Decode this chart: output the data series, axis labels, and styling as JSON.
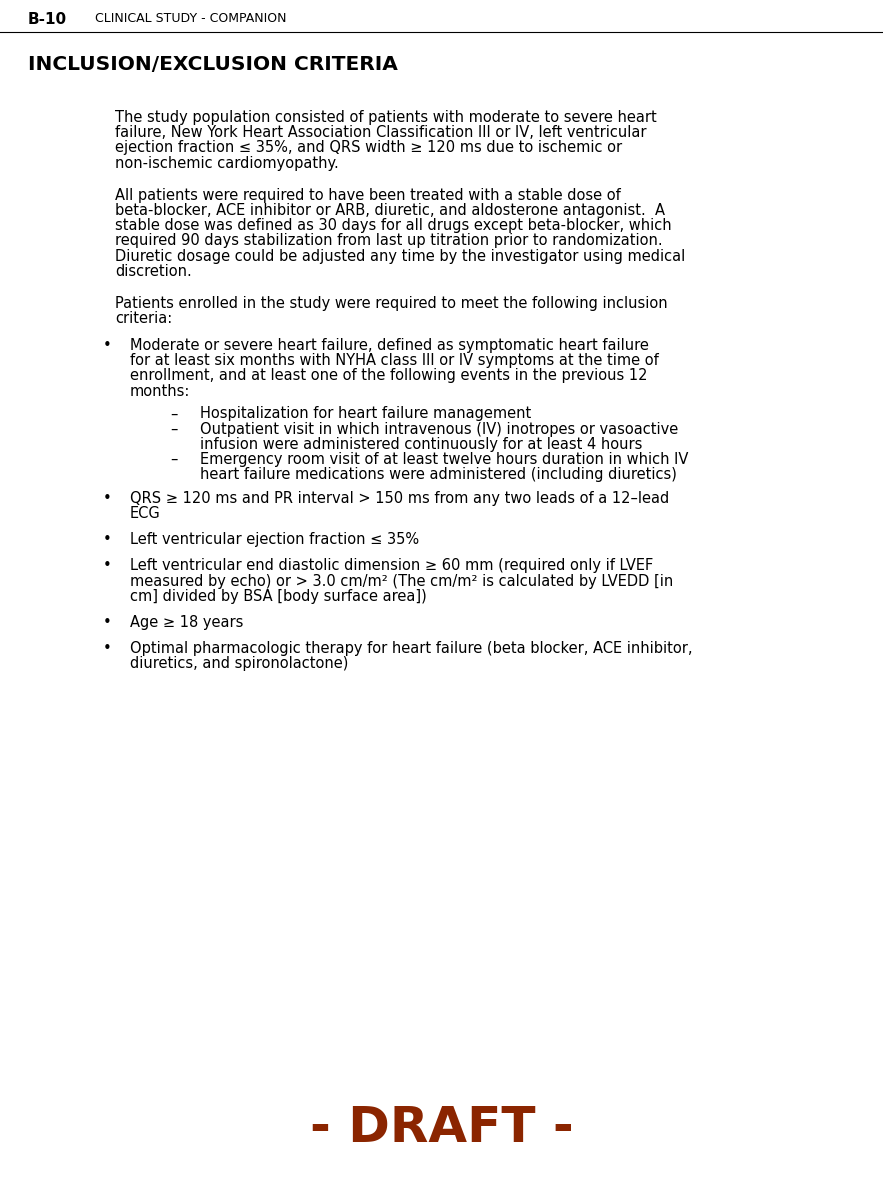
{
  "header_left": "B-10",
  "header_right": "CLINICAL STUDY - COMPANION",
  "title": "INCLUSION/EXCLUSION CRITERIA",
  "draft_text": "- DRAFT -",
  "draft_color": "#8B2500",
  "background_color": "#ffffff",
  "body_text_size": 10.5,
  "header_text_size": 9.0,
  "title_text_size": 14.5,
  "draft_text_size": 36,
  "paragraphs": [
    "The study population consisted of patients with moderate to severe heart\nfailure, New York Heart Association Classification III or IV, left ventricular\nejection fraction ≤ 35%, and QRS width ≥ 120 ms due to ischemic or\nnon-ischemic cardiomyopathy.",
    "All patients were required to have been treated with a stable dose of\nbeta-blocker, ACE inhibitor or ARB, diuretic, and aldosterone antagonist.  A\nstable dose was defined as 30 days for all drugs except beta-blocker, which\nrequired 90 days stabilization from last up titration prior to randomization.\nDiuretic dosage could be adjusted any time by the investigator using medical\ndiscretion.",
    "Patients enrolled in the study were required to meet the following inclusion\ncriteria:"
  ],
  "bullets": [
    {
      "text": "Moderate or severe heart failure, defined as symptomatic heart failure\nfor at least six months with NYHA class III or IV symptoms at the time of\nenrollment, and at least one of the following events in the previous 12\nmonths:",
      "sub_bullets": [
        "Hospitalization for heart failure management",
        "Outpatient visit in which intravenous (IV) inotropes or vasoactive\ninfusion were administered continuously for at least 4 hours",
        "Emergency room visit of at least twelve hours duration in which IV\nheart failure medications were administered (including diuretics)"
      ]
    },
    {
      "text": "QRS ≥ 120 ms and PR interval > 150 ms from any two leads of a 12–lead\nECG",
      "sub_bullets": []
    },
    {
      "text": "Left ventricular ejection fraction ≤ 35%",
      "sub_bullets": []
    },
    {
      "text": "Left ventricular end diastolic dimension ≥ 60 mm (required only if LVEF\nmeasured by echo) or > 3.0 cm/m² (The cm/m² is calculated by LVEDD [in\ncm] divided by BSA [body surface area])",
      "sub_bullets": []
    },
    {
      "text": "Age ≥ 18 years",
      "sub_bullets": []
    },
    {
      "text": "Optimal pharmacologic therapy for heart failure (beta blocker, ACE inhibitor,\ndiuretics, and spironolactone)",
      "sub_bullets": []
    }
  ]
}
